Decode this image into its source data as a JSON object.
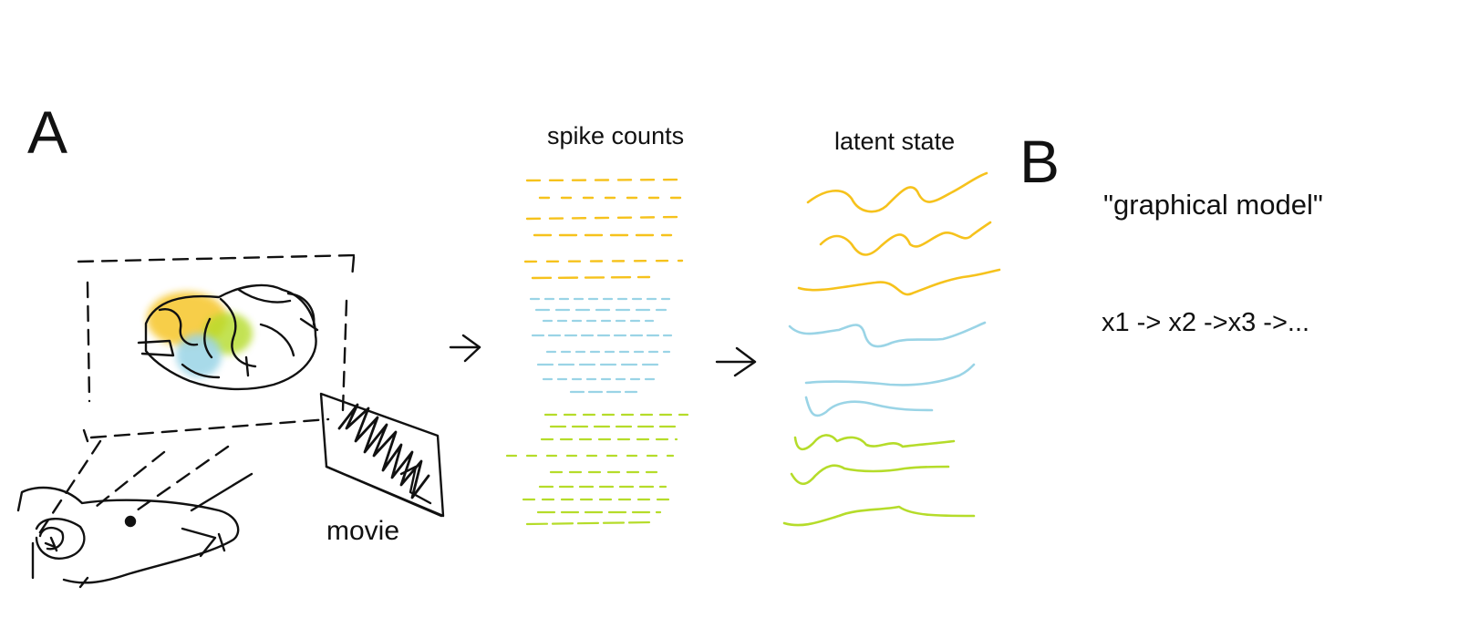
{
  "labels": {
    "panel_a": "A",
    "panel_b": "B",
    "spike_counts": "spike counts",
    "latent_state": "latent state",
    "movie": "movie",
    "graphical_model": "\"graphical model\"",
    "chain": "x1 -> x2 ->x3 ->..."
  },
  "colors": {
    "ink": "#111111",
    "yellow": "#f6c21c",
    "blue": "#9ad4e6",
    "green": "#b5dc2a"
  },
  "icons": {
    "mouse": "mouse-sketch-icon",
    "brain": "brain-sketch-icon",
    "screen": "movie-screen-icon",
    "arrow": "arrow-right-icon"
  }
}
